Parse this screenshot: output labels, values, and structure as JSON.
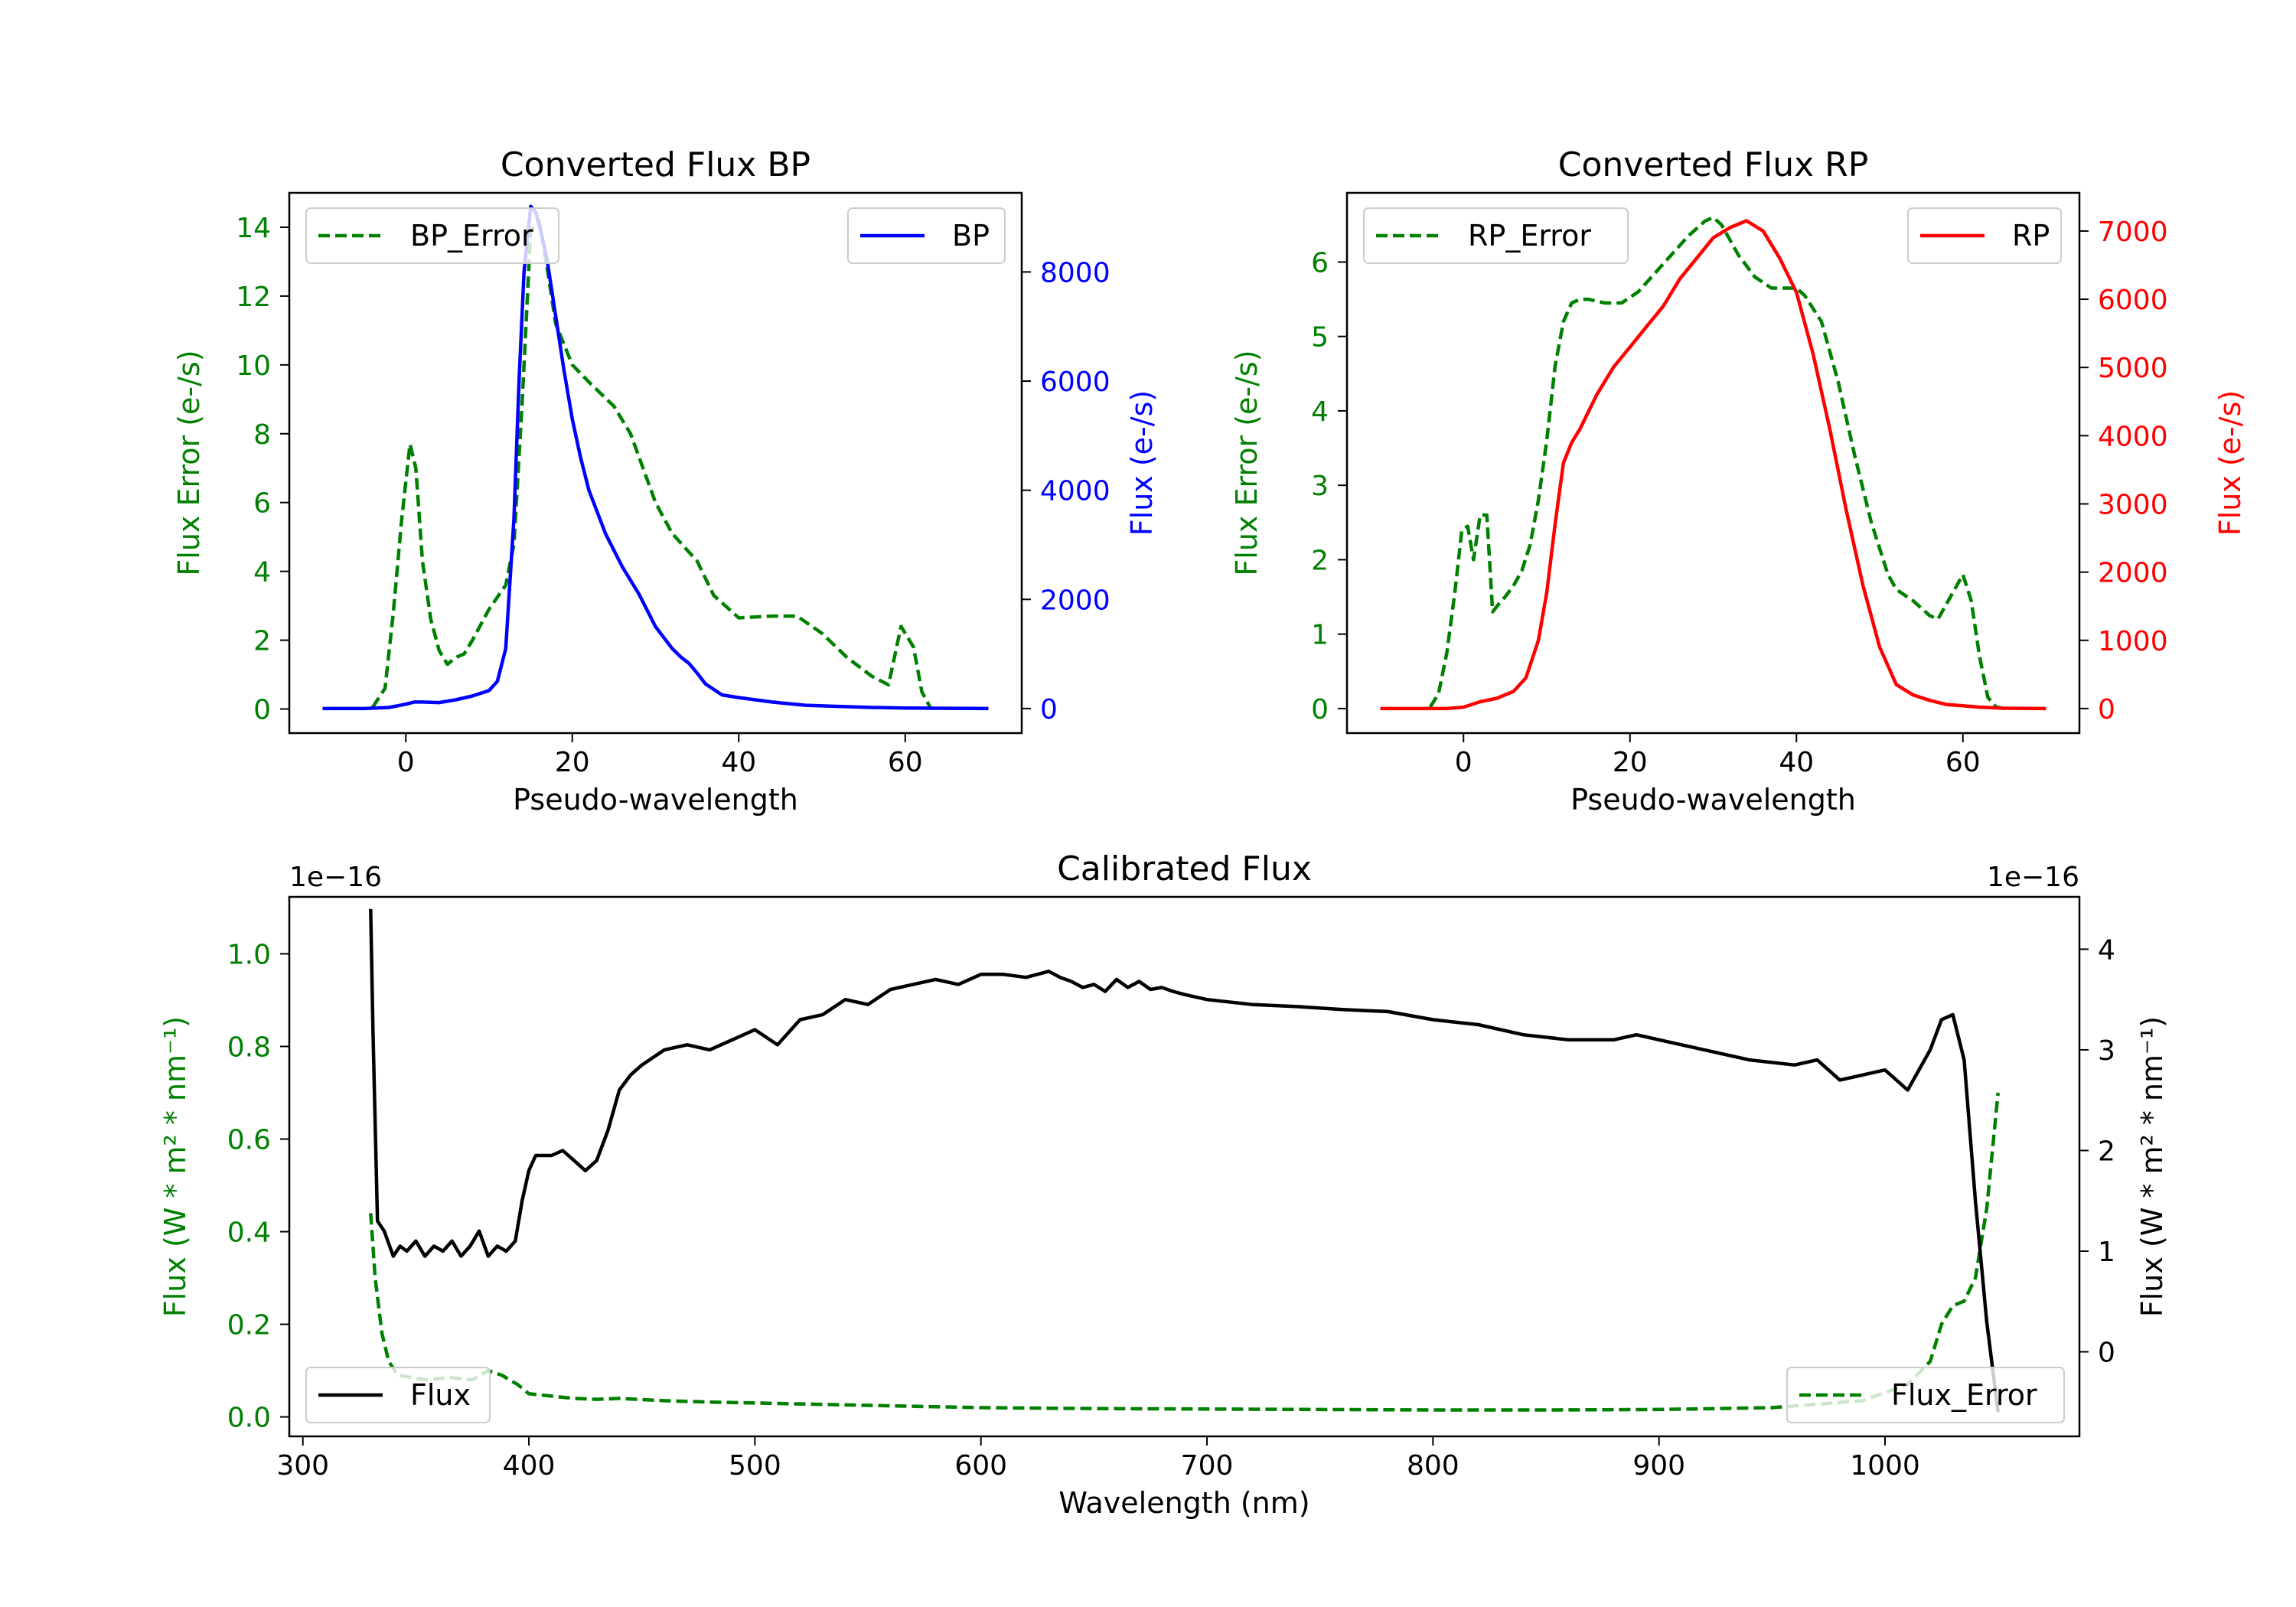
{
  "colors": {
    "green": "#008000",
    "blue": "#0000ff",
    "red": "#ff0000",
    "black": "#000000"
  },
  "chart_data": [
    {
      "id": "bp",
      "type": "line",
      "title": "Converted Flux BP",
      "xlabel": "Pseudo-wavelength",
      "xlim": [
        -14,
        74
      ],
      "xticks": [
        0,
        20,
        40,
        60
      ],
      "left_axis": {
        "label": "Flux Error (e-/s)",
        "color": "green",
        "lim": [
          -0.7,
          15.0
        ],
        "ticks": [
          0,
          2,
          4,
          6,
          8,
          10,
          12,
          14
        ]
      },
      "right_axis": {
        "label": "Flux (e-/s)",
        "color": "blue",
        "lim": [
          -450,
          9450
        ],
        "ticks": [
          0,
          2000,
          4000,
          6000,
          8000
        ]
      },
      "series": [
        {
          "name": "BP_Error",
          "axis": "left",
          "style": "dashed",
          "color": "green",
          "legend": "top-left",
          "x": [
            -4,
            -2.5,
            -1.5,
            -0.5,
            0.5,
            1.2,
            2,
            3,
            4,
            5,
            6,
            7,
            8,
            10,
            12,
            13,
            14,
            15,
            16,
            17,
            18,
            20,
            22,
            25,
            27,
            30,
            32,
            35,
            37,
            40,
            44,
            47,
            50,
            53,
            56,
            58,
            59.5,
            61,
            62,
            63
          ],
          "y": [
            0.05,
            0.6,
            2.8,
            5.5,
            7.7,
            7.0,
            4.3,
            2.6,
            1.7,
            1.3,
            1.5,
            1.6,
            2.0,
            2.9,
            3.6,
            4.8,
            9.0,
            13.9,
            14.2,
            12.8,
            11.2,
            10.0,
            9.5,
            8.8,
            8.0,
            6.0,
            5.1,
            4.3,
            3.3,
            2.65,
            2.7,
            2.7,
            2.2,
            1.5,
            0.95,
            0.7,
            2.4,
            1.8,
            0.5,
            0.05
          ]
        },
        {
          "name": "BP",
          "axis": "right",
          "style": "solid",
          "color": "blue",
          "legend": "top-right",
          "x": [
            -10,
            -5,
            -2,
            0,
            1,
            2,
            4,
            6,
            8,
            10,
            11,
            12,
            13,
            13.6,
            14.2,
            15,
            15.6,
            16.3,
            17,
            18,
            19,
            20,
            21,
            22,
            24,
            26,
            28,
            30,
            31,
            32,
            33,
            34,
            35,
            36,
            38,
            40,
            44,
            48,
            52,
            56,
            60,
            65,
            70
          ],
          "y": [
            0,
            0,
            20,
            80,
            120,
            120,
            110,
            160,
            230,
            330,
            500,
            1100,
            3500,
            6000,
            8000,
            9200,
            9100,
            8700,
            8200,
            7200,
            6200,
            5300,
            4600,
            4000,
            3200,
            2600,
            2100,
            1500,
            1300,
            1100,
            950,
            830,
            650,
            450,
            250,
            200,
            120,
            60,
            40,
            20,
            10,
            5,
            0
          ]
        }
      ]
    },
    {
      "id": "rp",
      "type": "line",
      "title": "Converted Flux RP",
      "xlabel": "Pseudo-wavelength",
      "xlim": [
        -14,
        74
      ],
      "xticks": [
        0,
        20,
        40,
        60
      ],
      "left_axis": {
        "label": "Flux Error (e-/s)",
        "color": "green",
        "lim": [
          -0.33,
          6.93
        ],
        "ticks": [
          0,
          1,
          2,
          3,
          4,
          5,
          6
        ]
      },
      "right_axis": {
        "label": "Flux (e-/s)",
        "color": "red",
        "lim": [
          -360,
          7560
        ],
        "ticks": [
          0,
          1000,
          2000,
          3000,
          4000,
          5000,
          6000,
          7000
        ]
      },
      "series": [
        {
          "name": "RP_Error",
          "axis": "left",
          "style": "dashed",
          "color": "green",
          "legend": "top-left",
          "x": [
            -4,
            -3,
            -2,
            -1,
            -0.2,
            0.5,
            1.2,
            2,
            2.8,
            3.5,
            4.2,
            5,
            6,
            7,
            8,
            9,
            10,
            11,
            12,
            13,
            14,
            15,
            17,
            19,
            21,
            23,
            25,
            27,
            29,
            30,
            31,
            33,
            35,
            37,
            38,
            40,
            41,
            43,
            45,
            47,
            49,
            51,
            52,
            54,
            56,
            57,
            58,
            59,
            60,
            61,
            62,
            63,
            64,
            65
          ],
          "y": [
            0.02,
            0.2,
            0.75,
            1.6,
            2.4,
            2.45,
            2.0,
            2.6,
            2.6,
            1.3,
            1.4,
            1.5,
            1.65,
            1.85,
            2.2,
            2.8,
            3.6,
            4.6,
            5.2,
            5.45,
            5.5,
            5.5,
            5.45,
            5.45,
            5.6,
            5.85,
            6.1,
            6.35,
            6.55,
            6.6,
            6.5,
            6.1,
            5.8,
            5.65,
            5.65,
            5.65,
            5.55,
            5.2,
            4.4,
            3.4,
            2.5,
            1.8,
            1.6,
            1.45,
            1.25,
            1.2,
            1.4,
            1.6,
            1.8,
            1.45,
            0.7,
            0.15,
            0.02,
            0.0
          ]
        },
        {
          "name": "RP",
          "axis": "right",
          "style": "solid",
          "color": "red",
          "legend": "top-right",
          "x": [
            -10,
            -5,
            -2,
            0,
            2,
            4,
            6,
            7.5,
            9,
            10,
            11,
            12,
            13,
            14,
            16,
            18,
            20,
            22,
            24,
            26,
            28,
            30,
            32,
            34,
            36,
            38,
            40,
            42,
            44,
            46,
            48,
            50,
            52,
            54,
            56,
            58,
            60,
            62,
            65,
            70
          ],
          "y": [
            0,
            0,
            0,
            20,
            100,
            150,
            250,
            450,
            1000,
            1700,
            2700,
            3600,
            3900,
            4100,
            4600,
            5000,
            5300,
            5600,
            5900,
            6300,
            6600,
            6900,
            7050,
            7150,
            7000,
            6600,
            6100,
            5200,
            4100,
            2900,
            1800,
            900,
            350,
            200,
            120,
            60,
            40,
            20,
            5,
            0
          ]
        }
      ]
    },
    {
      "id": "calibrated",
      "type": "line",
      "title": "Calibrated Flux",
      "xlabel": "Wavelength (nm)",
      "xlim": [
        294,
        1086
      ],
      "xticks": [
        300,
        400,
        500,
        600,
        700,
        800,
        900,
        1000
      ],
      "left_axis": {
        "label": "Flux (W * m² * nm⁻¹)",
        "color": "green",
        "lim": [
          -0.042,
          1.123
        ],
        "ticks": [
          0.0,
          0.2,
          0.4,
          0.6,
          0.8,
          1.0
        ],
        "tick_labels": [
          "0.0",
          "0.2",
          "0.4",
          "0.6",
          "0.8",
          "1.0"
        ],
        "offset": "1e−16"
      },
      "right_axis": {
        "label": "Flux (W * m² * nm⁻¹)",
        "color": "black",
        "lim": [
          -0.84,
          4.52
        ],
        "ticks": [
          0,
          1,
          2,
          3,
          4
        ],
        "offset": "1e−16"
      },
      "series": [
        {
          "name": "Flux_Error",
          "axis": "left",
          "style": "dashed",
          "color": "green",
          "legend": "bottom-right",
          "x": [
            330,
            332,
            335,
            338,
            342,
            348,
            355,
            365,
            375,
            382,
            388,
            395,
            400,
            410,
            420,
            430,
            440,
            460,
            480,
            500,
            550,
            600,
            650,
            700,
            750,
            800,
            850,
            900,
            950,
            990,
            1010,
            1020,
            1025,
            1030,
            1035,
            1040,
            1045,
            1050
          ],
          "y": [
            0.44,
            0.3,
            0.18,
            0.12,
            0.09,
            0.085,
            0.08,
            0.085,
            0.08,
            0.1,
            0.09,
            0.07,
            0.05,
            0.045,
            0.04,
            0.038,
            0.04,
            0.035,
            0.032,
            0.03,
            0.025,
            0.02,
            0.018,
            0.017,
            0.016,
            0.015,
            0.015,
            0.016,
            0.02,
            0.035,
            0.07,
            0.12,
            0.2,
            0.24,
            0.25,
            0.3,
            0.45,
            0.7
          ]
        },
        {
          "name": "Flux",
          "axis": "right",
          "style": "solid",
          "color": "black",
          "legend": "bottom-left",
          "x": [
            330,
            331,
            333,
            336,
            340,
            343,
            346,
            350,
            354,
            358,
            362,
            366,
            370,
            374,
            378,
            382,
            386,
            390,
            394,
            397,
            400,
            403,
            406,
            410,
            415,
            420,
            425,
            430,
            435,
            440,
            445,
            450,
            460,
            470,
            480,
            490,
            500,
            510,
            520,
            530,
            540,
            550,
            560,
            570,
            580,
            590,
            600,
            610,
            620,
            630,
            635,
            640,
            645,
            650,
            655,
            660,
            665,
            670,
            675,
            680,
            685,
            690,
            700,
            720,
            740,
            760,
            780,
            800,
            820,
            840,
            860,
            880,
            890,
            900,
            920,
            940,
            960,
            970,
            980,
            990,
            1000,
            1010,
            1020,
            1025,
            1030,
            1035,
            1040,
            1045,
            1050
          ],
          "y": [
            4.4,
            3.2,
            1.3,
            1.2,
            0.95,
            1.05,
            1.0,
            1.1,
            0.95,
            1.05,
            1.0,
            1.1,
            0.95,
            1.05,
            1.2,
            0.95,
            1.05,
            1.0,
            1.1,
            1.5,
            1.8,
            1.95,
            1.95,
            1.95,
            2.0,
            1.9,
            1.8,
            1.9,
            2.2,
            2.6,
            2.75,
            2.85,
            3.0,
            3.05,
            3.0,
            3.1,
            3.2,
            3.05,
            3.3,
            3.35,
            3.5,
            3.45,
            3.6,
            3.65,
            3.7,
            3.65,
            3.75,
            3.75,
            3.72,
            3.78,
            3.72,
            3.68,
            3.62,
            3.65,
            3.58,
            3.7,
            3.62,
            3.68,
            3.6,
            3.62,
            3.58,
            3.55,
            3.5,
            3.45,
            3.43,
            3.4,
            3.38,
            3.3,
            3.25,
            3.15,
            3.1,
            3.1,
            3.15,
            3.1,
            3.0,
            2.9,
            2.85,
            2.9,
            2.7,
            2.75,
            2.8,
            2.6,
            3.0,
            3.3,
            3.35,
            2.9,
            1.5,
            0.3,
            -0.6
          ]
        }
      ]
    }
  ]
}
